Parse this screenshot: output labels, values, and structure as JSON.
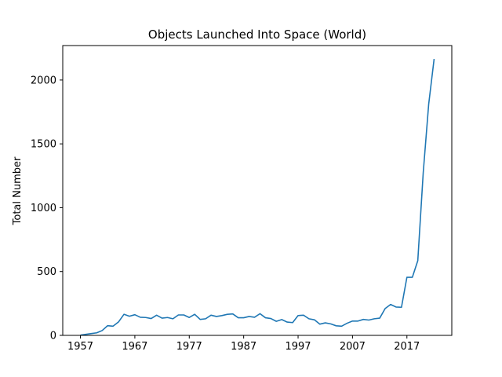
{
  "chart_data": {
    "type": "line",
    "title": "Objects Launched Into Space (World)",
    "xlabel": "",
    "ylabel": "Total Number",
    "xlim": [
      1953.75,
      2025.25
    ],
    "ylim": [
      0,
      2270
    ],
    "x_ticks": [
      1957,
      1967,
      1977,
      1987,
      1997,
      2007,
      2017
    ],
    "y_ticks": [
      0,
      500,
      1000,
      1500,
      2000
    ],
    "legend": "none",
    "grid": false,
    "line_color": "#1f77b4",
    "series": [
      {
        "x": [
          1957,
          1958,
          1959,
          1960,
          1961,
          1962,
          1963,
          1964,
          1965,
          1966,
          1967,
          1968,
          1969,
          1970,
          1971,
          1972,
          1973,
          1974,
          1975,
          1976,
          1977,
          1978,
          1979,
          1980,
          1981,
          1982,
          1983,
          1984,
          1985,
          1986,
          1987,
          1988,
          1989,
          1990,
          1991,
          1992,
          1993,
          1994,
          1995,
          1996,
          1997,
          1998,
          1999,
          2000,
          2001,
          2002,
          2003,
          2004,
          2005,
          2006,
          2007,
          2008,
          2009,
          2010,
          2011,
          2012,
          2013,
          2014,
          2015,
          2016,
          2017,
          2018,
          2019,
          2020,
          2021,
          2022
        ],
        "values": [
          2,
          8,
          14,
          20,
          38,
          76,
          72,
          105,
          165,
          150,
          162,
          142,
          140,
          132,
          158,
          135,
          140,
          130,
          160,
          160,
          140,
          165,
          125,
          130,
          158,
          148,
          155,
          165,
          168,
          138,
          138,
          148,
          142,
          170,
          138,
          132,
          110,
          124,
          104,
          100,
          155,
          158,
          130,
          122,
          88,
          98,
          90,
          75,
          72,
          95,
          112,
          112,
          125,
          120,
          130,
          135,
          210,
          242,
          222,
          220,
          455,
          455,
          585,
          1275,
          1810,
          2165
        ]
      }
    ]
  }
}
